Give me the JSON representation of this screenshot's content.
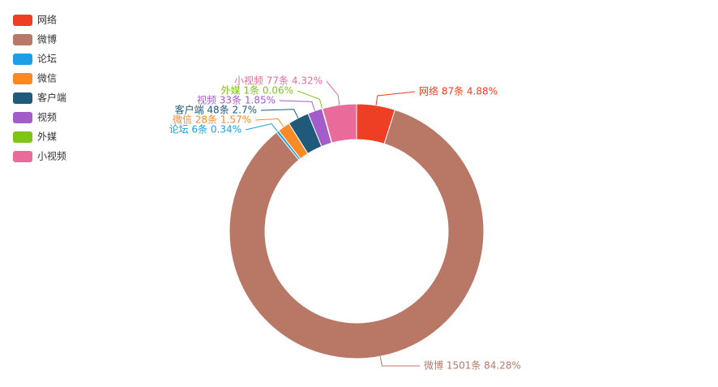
{
  "chart_data": {
    "type": "donut",
    "categories": [
      "网络",
      "微博",
      "论坛",
      "微信",
      "客户端",
      "视频",
      "外媒",
      "小视频"
    ],
    "values": [
      87,
      1501,
      6,
      28,
      48,
      33,
      1,
      77
    ],
    "value_labels": [
      "网络 87条  4.88%",
      "微博 1501条  84.28%",
      "论坛 6条  0.34%",
      "微信 28条  1.57%",
      "客户端 48条  2.7%",
      "视频 33条  1.85%",
      "外媒 1条  0.06%",
      "小视频 77条  4.32%"
    ],
    "colors": [
      "#ee3f24",
      "#b97766",
      "#1e9ee6",
      "#fb8a26",
      "#1f5a7a",
      "#a45cc9",
      "#80c31a",
      "#e86b99"
    ],
    "legend": "top-left"
  }
}
